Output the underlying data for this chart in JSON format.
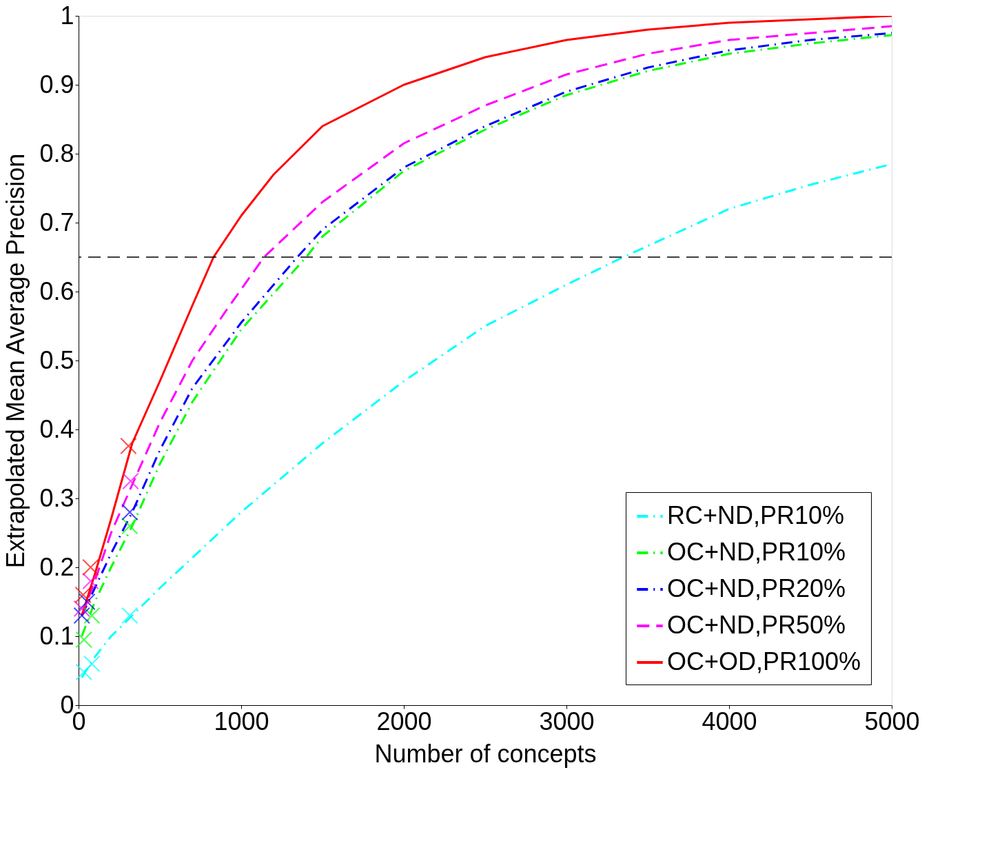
{
  "chart_data": {
    "type": "line",
    "xlabel": "Number of concepts",
    "ylabel": "Extrapolated Mean Average Precision",
    "xlim": [
      0,
      5000
    ],
    "xticks": [
      0,
      1000,
      2000,
      3000,
      4000,
      5000
    ],
    "ylim": [
      0,
      1
    ],
    "yticks": [
      0,
      0.1,
      0.2,
      0.3,
      0.4,
      0.5,
      0.6,
      0.7,
      0.8,
      0.9,
      1
    ],
    "grid": false,
    "legend": "bottom right",
    "marker": "none",
    "ref_lines": [
      {
        "axis": "y",
        "value": 0.65,
        "color": "#000000",
        "line_style": "dashed"
      }
    ],
    "series": [
      {
        "name": "RC+ND,PR10%",
        "color": "#00ffff",
        "line_style": "dashdot",
        "x": [
          20,
          100,
          200,
          330,
          500,
          1000,
          1500,
          2000,
          2500,
          3000,
          3350,
          4000,
          4500,
          5000
        ],
        "values": [
          0.04,
          0.07,
          0.1,
          0.13,
          0.17,
          0.28,
          0.38,
          0.47,
          0.55,
          0.61,
          0.65,
          0.72,
          0.755,
          0.785
        ]
      },
      {
        "name": "OC+ND,PR10%",
        "color": "#00ff00",
        "line_style": "dashdot",
        "x": [
          20,
          100,
          200,
          330,
          500,
          700,
          1000,
          1400,
          1500,
          2000,
          2500,
          3000,
          3500,
          4000,
          4500,
          5000
        ],
        "values": [
          0.1,
          0.15,
          0.2,
          0.26,
          0.35,
          0.44,
          0.545,
          0.65,
          0.68,
          0.775,
          0.835,
          0.885,
          0.92,
          0.945,
          0.96,
          0.972
        ]
      },
      {
        "name": "OC+ND,PR20%",
        "color": "#0000ff",
        "line_style": "dashdot",
        "x": [
          20,
          100,
          200,
          330,
          500,
          700,
          1000,
          1345,
          1500,
          2000,
          2500,
          3000,
          3500,
          4000,
          4500,
          5000
        ],
        "values": [
          0.13,
          0.17,
          0.22,
          0.28,
          0.37,
          0.46,
          0.555,
          0.65,
          0.69,
          0.78,
          0.84,
          0.89,
          0.925,
          0.95,
          0.965,
          0.975
        ]
      },
      {
        "name": "OC+ND,PR50%",
        "color": "#ff00ff",
        "line_style": "dashed",
        "x": [
          20,
          100,
          200,
          330,
          500,
          700,
          900,
          1140,
          1500,
          2000,
          2500,
          3000,
          3500,
          4000,
          4500,
          5000
        ],
        "values": [
          0.13,
          0.18,
          0.25,
          0.32,
          0.41,
          0.5,
          0.57,
          0.65,
          0.73,
          0.815,
          0.87,
          0.915,
          0.945,
          0.965,
          0.975,
          0.985
        ]
      },
      {
        "name": "OC+OD,PR100%",
        "color": "#ff0000",
        "line_style": "solid",
        "x": [
          20,
          100,
          200,
          330,
          500,
          700,
          830,
          1000,
          1200,
          1500,
          2000,
          2500,
          3000,
          3500,
          4000,
          4500,
          5000
        ],
        "values": [
          0.13,
          0.19,
          0.27,
          0.38,
          0.47,
          0.58,
          0.65,
          0.71,
          0.77,
          0.84,
          0.9,
          0.94,
          0.965,
          0.98,
          0.99,
          0.995,
          1.0
        ]
      },
      {
        "type": "scatter",
        "marker": "cross",
        "color": "#00ffff",
        "x": [
          33,
          82,
          315
        ],
        "values": [
          0.048,
          0.06,
          0.13
        ]
      },
      {
        "type": "scatter",
        "marker": "cross",
        "color": "#00ff00",
        "x": [
          33,
          82,
          315
        ],
        "values": [
          0.095,
          0.13,
          0.26
        ]
      },
      {
        "type": "scatter",
        "marker": "cross",
        "color": "#0000ff",
        "x": [
          20,
          53,
          315
        ],
        "values": [
          0.13,
          0.15,
          0.28
        ]
      },
      {
        "type": "scatter",
        "marker": "cross",
        "color": "#ff00ff",
        "x": [
          20,
          74,
          320
        ],
        "values": [
          0.14,
          0.18,
          0.325
        ]
      },
      {
        "type": "scatter",
        "marker": "cross",
        "color": "#ff0000",
        "x": [
          28,
          74,
          307
        ],
        "values": [
          0.16,
          0.2,
          0.376
        ]
      }
    ]
  }
}
